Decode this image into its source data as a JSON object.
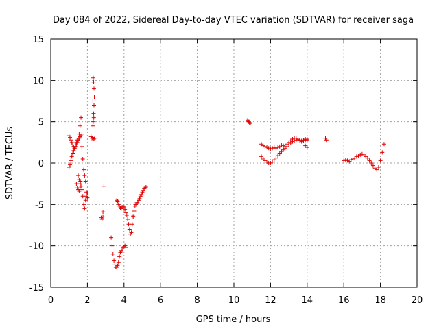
{
  "chart_data": {
    "type": "scatter",
    "title": "Day 084 of 2022, Sidereal Day-to-day VTEC variation (SDTVAR) for receiver saga",
    "xlabel": "GPS time / hours",
    "ylabel": "SDTVAR / TECUs",
    "xlim": [
      0,
      20
    ],
    "ylim": [
      -15,
      15
    ],
    "xticks": [
      0,
      2,
      4,
      6,
      8,
      10,
      12,
      14,
      16,
      18,
      20
    ],
    "yticks": [
      -15,
      -10,
      -5,
      0,
      5,
      10,
      15
    ],
    "grid": true,
    "marker": "+",
    "color": "#e00000",
    "series": [
      {
        "name": "SDTVAR",
        "x": [
          1.0,
          1.05,
          1.1,
          1.15,
          1.2,
          1.25,
          1.3,
          1.35,
          1.4,
          1.45,
          1.5,
          1.55,
          1.6,
          1.65,
          1.7,
          1.75,
          1.8,
          1.85,
          1.9,
          1.95,
          2.0,
          1.0,
          1.05,
          1.1,
          1.15,
          1.2,
          1.25,
          1.3,
          1.35,
          1.4,
          1.45,
          1.5,
          1.55,
          1.6,
          1.65,
          1.7,
          1.4,
          1.45,
          1.5,
          1.55,
          1.6,
          1.65,
          1.7,
          1.75,
          1.8,
          1.85,
          1.9,
          1.95,
          2.0,
          1.5,
          1.55,
          1.6,
          1.62,
          2.2,
          2.25,
          2.3,
          2.35,
          2.4,
          2.3,
          2.32,
          2.34,
          2.36,
          2.38,
          2.36,
          2.34,
          2.32,
          2.3,
          2.35,
          2.75,
          2.8,
          2.85,
          2.9,
          2.85,
          3.3,
          3.35,
          3.4,
          3.45,
          3.5,
          3.55,
          3.6,
          3.65,
          3.7,
          3.75,
          3.8,
          3.85,
          3.9,
          3.95,
          4.0,
          4.05,
          4.1,
          3.6,
          3.65,
          3.7,
          3.75,
          3.8,
          3.85,
          3.9,
          3.95,
          4.0,
          4.05,
          4.1,
          4.15,
          4.2,
          4.25,
          4.3,
          4.35,
          4.4,
          4.45,
          4.5,
          4.5,
          4.55,
          4.6,
          4.65,
          4.7,
          4.75,
          4.8,
          4.85,
          4.9,
          4.95,
          5.0,
          5.05,
          5.1,
          5.15,
          5.2,
          10.75,
          10.8,
          10.85,
          10.9,
          11.5,
          11.6,
          11.7,
          11.8,
          11.9,
          12.0,
          12.1,
          12.2,
          12.3,
          12.4,
          12.5,
          12.6,
          12.7,
          12.8,
          12.9,
          13.0,
          13.1,
          13.2,
          13.3,
          13.4,
          13.5,
          13.6,
          13.7,
          13.8,
          13.9,
          14.0,
          11.5,
          11.6,
          11.7,
          11.8,
          11.9,
          12.0,
          12.1,
          12.2,
          12.3,
          12.4,
          12.5,
          12.6,
          12.7,
          12.8,
          12.9,
          13.0,
          13.1,
          13.2,
          13.3,
          13.4,
          13.5,
          13.6,
          13.7,
          13.8,
          13.9,
          14.0,
          13.9,
          14.0,
          15.0,
          15.05,
          16.0,
          16.1,
          16.2,
          16.3,
          16.4,
          16.5,
          16.6,
          16.7,
          16.8,
          16.9,
          17.0,
          17.1,
          17.2,
          17.3,
          17.4,
          17.5,
          17.6,
          17.7,
          17.8,
          17.9,
          18.0,
          18.1,
          18.2
        ],
        "y": [
          -0.5,
          -0.2,
          0.3,
          0.8,
          1.2,
          1.5,
          1.8,
          2.2,
          2.5,
          2.8,
          3.0,
          3.5,
          4.5,
          5.5,
          2.0,
          0.5,
          -0.8,
          -1.5,
          -2.2,
          -3.5,
          -4.2,
          3.3,
          3.1,
          2.8,
          2.5,
          2.2,
          2.0,
          1.8,
          2.0,
          2.2,
          2.5,
          2.8,
          3.0,
          3.2,
          3.3,
          3.5,
          -2.5,
          -3.0,
          -3.2,
          -3.4,
          -3.0,
          -2.8,
          -3.2,
          -4.0,
          -5.0,
          -5.5,
          -4.5,
          -4.0,
          -3.6,
          -1.5,
          -2.0,
          -2.5,
          -2.2,
          3.2,
          3.0,
          3.1,
          2.9,
          3.0,
          4.5,
          5.0,
          6.0,
          7.0,
          8.0,
          9.0,
          9.8,
          10.3,
          7.5,
          5.5,
          -6.6,
          -6.8,
          -6.5,
          -2.8,
          -5.9,
          -9.0,
          -10.0,
          -11.0,
          -11.8,
          -12.3,
          -12.6,
          -12.6,
          -12.4,
          -12.0,
          -11.3,
          -10.8,
          -10.6,
          -10.4,
          -10.2,
          -10.1,
          -10.0,
          -10.2,
          -4.5,
          -4.6,
          -5.0,
          -5.2,
          -5.4,
          -5.5,
          -5.3,
          -5.2,
          -5.3,
          -5.6,
          -6.0,
          -6.3,
          -6.8,
          -7.4,
          -8.0,
          -8.6,
          -8.4,
          -7.4,
          -6.4,
          -6.5,
          -5.8,
          -5.2,
          -5.0,
          -4.8,
          -4.7,
          -4.5,
          -4.3,
          -4.0,
          -3.8,
          -3.5,
          -3.3,
          -3.1,
          -3.0,
          -2.9,
          5.2,
          5.0,
          4.9,
          4.8,
          0.8,
          0.5,
          0.3,
          0.1,
          0.0,
          0.0,
          0.1,
          0.4,
          0.6,
          0.9,
          1.2,
          1.4,
          1.6,
          1.8,
          2.0,
          2.2,
          2.4,
          2.6,
          2.7,
          2.8,
          2.8,
          2.7,
          2.6,
          2.7,
          2.8,
          2.8,
          2.3,
          2.1,
          2.0,
          1.9,
          1.8,
          1.7,
          1.8,
          1.9,
          1.8,
          1.9,
          2.0,
          2.2,
          2.1,
          2.0,
          2.3,
          2.5,
          2.7,
          2.9,
          3.0,
          3.0,
          2.9,
          2.8,
          2.7,
          2.8,
          2.9,
          2.9,
          2.1,
          1.9,
          3.0,
          2.8,
          0.3,
          0.4,
          0.3,
          0.2,
          0.4,
          0.5,
          0.6,
          0.8,
          0.9,
          1.0,
          1.1,
          1.0,
          0.8,
          0.6,
          0.3,
          0.0,
          -0.3,
          -0.6,
          -0.8,
          -0.5,
          0.3,
          1.3,
          2.3
        ]
      }
    ]
  }
}
